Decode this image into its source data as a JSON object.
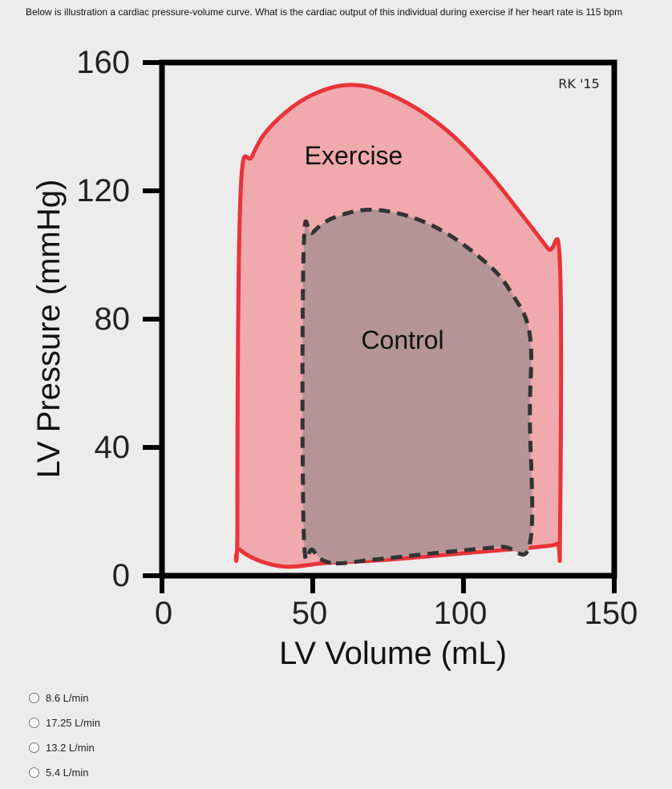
{
  "question": {
    "text": "Below is illustration a cardiac pressure-volume curve. What is the cardiac output of this individual during exercise if her heart rate is 115 bpm"
  },
  "chart_data": {
    "type": "line",
    "title": "",
    "xlabel": "LV Volume (mL)",
    "ylabel": "LV Pressure (mmHg)",
    "xlim": [
      0,
      150
    ],
    "ylim": [
      0,
      160
    ],
    "xticks": [
      "0",
      "50",
      "100",
      "150"
    ],
    "yticks": [
      "0",
      "40",
      "80",
      "120",
      "160"
    ],
    "credit": "RK '15",
    "series": [
      {
        "name": "Exercise",
        "color": "#e8343a",
        "fill": "#f0a9ac",
        "style": "solid",
        "x": [
          39,
          26,
          25,
          26,
          30,
          37,
          50,
          64,
          78,
          93,
          107,
          119,
          128,
          132,
          132,
          131,
          125,
          100,
          75,
          55,
          39
        ],
        "y": [
          3,
          8,
          15,
          118,
          131,
          141,
          150,
          153,
          149,
          140,
          127,
          113,
          102,
          97,
          12,
          10,
          9,
          7,
          5,
          4,
          3
        ]
      },
      {
        "name": "Control",
        "color": "#333333",
        "fill": "#b49497",
        "style": "dashed",
        "x": [
          56,
          50,
          47,
          47,
          50,
          58,
          72,
          90,
          107,
          116,
          122,
          122,
          122,
          112,
          90,
          70,
          56
        ],
        "y": [
          4,
          8,
          14,
          102,
          107,
          112,
          114,
          109,
          98,
          88,
          75,
          50,
          10,
          9,
          7,
          5,
          4
        ]
      }
    ]
  },
  "options": [
    {
      "label": "8.6 L/min"
    },
    {
      "label": "17.25 L/min"
    },
    {
      "label": "13.2 L/min"
    },
    {
      "label": "5.4 L/min"
    }
  ]
}
